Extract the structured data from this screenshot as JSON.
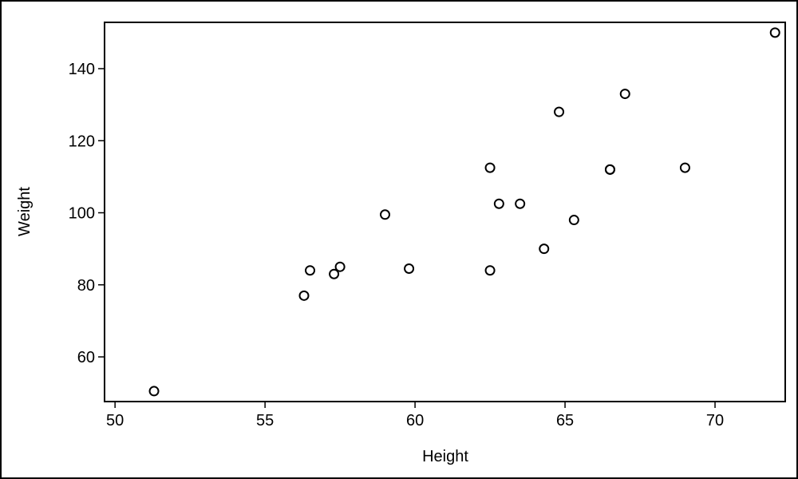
{
  "chart_data": {
    "type": "scatter",
    "x_label": "Height",
    "y_label": "Weight",
    "x": [
      69.0,
      56.5,
      65.3,
      62.8,
      63.5,
      57.3,
      59.8,
      62.5,
      62.5,
      59.0,
      51.3,
      64.3,
      56.3,
      66.5,
      72.0,
      64.8,
      67.0,
      57.5,
      66.5
    ],
    "values": [
      112.5,
      84.0,
      98.0,
      102.5,
      102.5,
      83.0,
      84.5,
      112.5,
      84.0,
      99.5,
      50.5,
      90.0,
      77.0,
      112.0,
      150.0,
      128.0,
      133.0,
      85.0,
      112.0
    ],
    "color": "#000000",
    "xlim": [
      49.65,
      72.34
    ],
    "xticks": [
      50,
      55,
      60,
      65,
      70
    ],
    "ylim": [
      47.6,
      152.85
    ],
    "yticks": [
      60,
      80,
      100,
      120,
      140
    ]
  }
}
